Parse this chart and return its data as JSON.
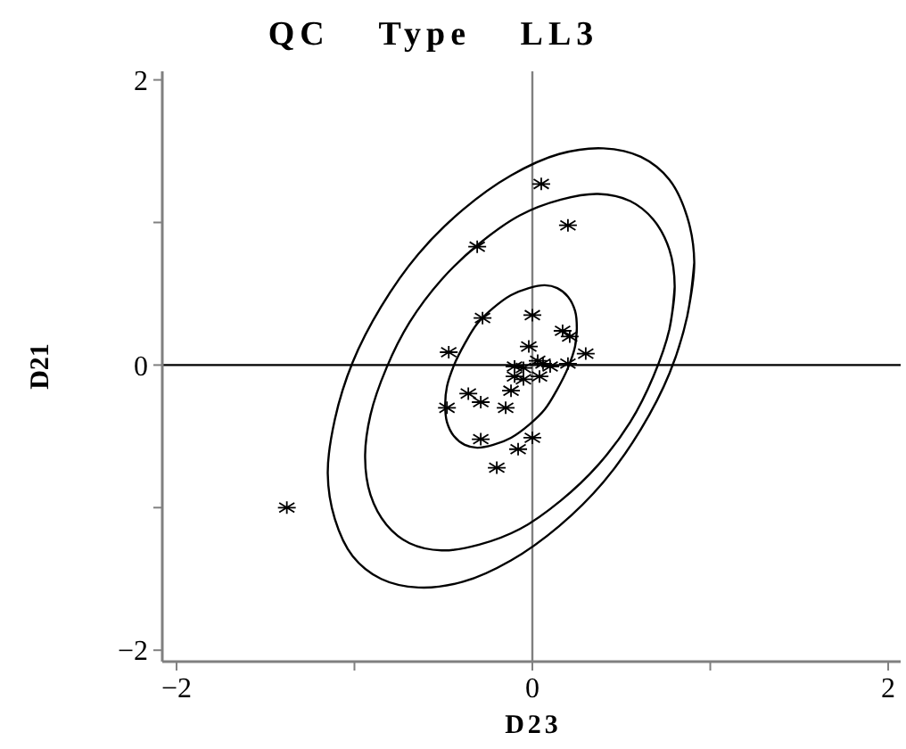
{
  "chart_data": {
    "type": "scatter",
    "title": "QC Type LL3",
    "xlabel": "D23",
    "ylabel": "D21",
    "xlim": [
      -2.08,
      2.07
    ],
    "ylim": [
      -2.08,
      2.06
    ],
    "xticks": [
      -2,
      {
        "value": -1,
        "label": null
      },
      0,
      {
        "value": 1,
        "label": null
      },
      2
    ],
    "yticks": [
      -2,
      {
        "value": -1,
        "label": null
      },
      0,
      {
        "value": 1,
        "label": null
      },
      2
    ],
    "marker": "cross",
    "ref_lines": [
      {
        "axis": "x",
        "value": 0,
        "color": "#808080"
      },
      {
        "axis": "y",
        "value": 0,
        "color": "#000000"
      }
    ],
    "series": [
      {
        "type": "line",
        "color": "#000000",
        "marker": "none",
        "x": [
          0.25,
          0.24,
          0.2,
          0.14,
          0.07,
          -0.02,
          -0.12,
          -0.22,
          -0.31,
          -0.38,
          -0.44,
          -0.48,
          -0.49,
          -0.48,
          -0.44,
          -0.38,
          -0.31,
          -0.22,
          -0.12,
          -0.02,
          0.07,
          0.14,
          0.2,
          0.24,
          0.25,
          0.24
        ],
        "values": [
          0.26,
          0.13,
          -0.02,
          -0.17,
          -0.31,
          -0.42,
          -0.51,
          -0.56,
          -0.58,
          -0.56,
          -0.5,
          -0.4,
          -0.28,
          -0.15,
          0,
          0.15,
          0.29,
          0.4,
          0.49,
          0.54,
          0.56,
          0.54,
          0.48,
          0.38,
          0.26,
          0.13
        ]
      },
      {
        "type": "line",
        "color": "#000000",
        "marker": "none",
        "x": [
          0.8,
          0.77,
          0.68,
          0.55,
          0.37,
          0.16,
          -0.07,
          -0.3,
          -0.51,
          -0.69,
          -0.82,
          -0.91,
          -0.94,
          -0.91,
          -0.82,
          -0.69,
          -0.51,
          -0.3,
          -0.07,
          0.16,
          0.37,
          0.55,
          0.68,
          0.77,
          0.8,
          0.77
        ],
        "values": [
          0.55,
          0.25,
          -0.08,
          -0.4,
          -0.7,
          -0.95,
          -1.15,
          -1.26,
          -1.3,
          -1.25,
          -1.12,
          -0.91,
          -0.65,
          -0.35,
          -0.02,
          0.3,
          0.6,
          0.85,
          1.05,
          1.16,
          1.2,
          1.15,
          1.02,
          0.81,
          0.55,
          0.25
        ]
      },
      {
        "type": "line",
        "color": "#000000",
        "marker": "none",
        "x": [
          0.91,
          0.87,
          0.77,
          0.61,
          0.4,
          0.15,
          -0.12,
          -0.39,
          -0.64,
          -0.85,
          -1.01,
          -1.11,
          -1.15,
          -1.11,
          -1.01,
          -0.85,
          -0.64,
          -0.39,
          -0.12,
          0.15,
          0.4,
          0.61,
          0.77,
          0.87,
          0.91,
          0.87
        ],
        "values": [
          0.72,
          0.34,
          -0.06,
          -0.45,
          -0.82,
          -1.13,
          -1.37,
          -1.52,
          -1.56,
          -1.5,
          -1.34,
          -1.08,
          -0.76,
          -0.38,
          0.02,
          0.41,
          0.78,
          1.09,
          1.33,
          1.48,
          1.52,
          1.46,
          1.3,
          1.04,
          0.72,
          0.34
        ]
      },
      {
        "type": "scatter",
        "color": "#000000",
        "x": [
          -1.38,
          0.05,
          0.2,
          -0.31,
          -0.28,
          0,
          0.17,
          0.21,
          -0.47,
          -0.02,
          0.3,
          0.2,
          -0.1,
          -0.05,
          0.03,
          0.06,
          0.1,
          -0.1,
          -0.05,
          0.04,
          -0.12,
          -0.36,
          -0.29,
          -0.48,
          -0.15,
          -0.29,
          0,
          -0.08,
          -0.2
        ],
        "values": [
          -1,
          1.27,
          0.98,
          0.83,
          0.33,
          0.35,
          0.24,
          0.2,
          0.09,
          0.13,
          0.08,
          0.01,
          -0.01,
          -0.02,
          0.03,
          0.01,
          -0.01,
          -0.08,
          -0.1,
          -0.08,
          -0.18,
          -0.2,
          -0.26,
          -0.3,
          -0.3,
          -0.52,
          -0.51,
          -0.59,
          -0.72
        ]
      }
    ]
  }
}
